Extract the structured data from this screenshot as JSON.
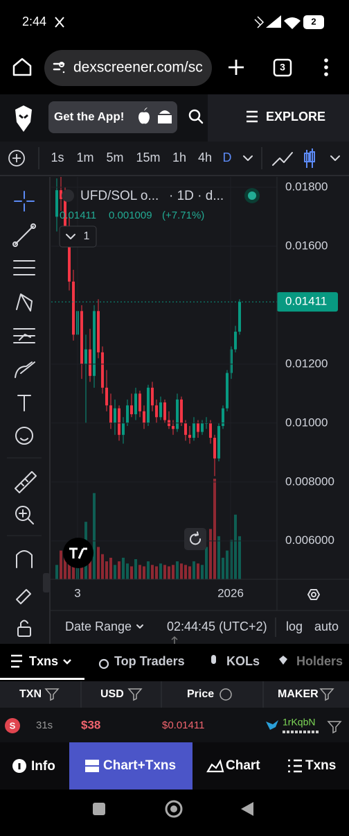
{
  "status_bar": {
    "time": "2:44",
    "battery": "2"
  },
  "browser": {
    "url": "dexscreener.com/sc",
    "tabs": "3"
  },
  "header": {
    "app_button": "Get the App!",
    "explore": "EXPLORE"
  },
  "timeframes": {
    "items": [
      "1s",
      "1m",
      "5m",
      "15m",
      "1h",
      "4h",
      "D"
    ],
    "active": 6
  },
  "chart_data": {
    "type": "candlestick",
    "title": "UFD/SOL o...",
    "interval": "· 1D · d...",
    "legend_values": [
      "0.01411",
      "0.001009",
      "(+7.71%)"
    ],
    "collapse_count": "1",
    "open": [
      0.017,
      0.0179,
      0.0176,
      0.0162,
      0.0148,
      0.013,
      0.0138,
      0.012,
      0.0125,
      0.0116,
      0.0138,
      0.0124,
      0.0112,
      0.0106,
      0.01,
      0.0105,
      0.0096,
      0.01,
      0.0106,
      0.0103,
      0.011,
      0.0104,
      0.01,
      0.0112,
      0.0106,
      0.0102,
      0.0107,
      0.0101,
      0.0099,
      0.0098,
      0.0108,
      0.01,
      0.0096,
      0.0095,
      0.01,
      0.0097,
      0.01,
      0.01,
      0.0095,
      0.0088,
      0.0099,
      0.0105,
      0.0117,
      0.0125,
      0.0131
    ],
    "high": [
      0.0183,
      0.0184,
      0.018,
      0.017,
      0.0152,
      0.0142,
      0.014,
      0.013,
      0.0132,
      0.014,
      0.0142,
      0.0126,
      0.0118,
      0.011,
      0.0108,
      0.0106,
      0.0102,
      0.0108,
      0.011,
      0.0112,
      0.0111,
      0.0106,
      0.0113,
      0.0114,
      0.0108,
      0.0109,
      0.0108,
      0.0104,
      0.0101,
      0.011,
      0.0109,
      0.0101,
      0.0099,
      0.0102,
      0.0101,
      0.0101,
      0.0102,
      0.0101,
      0.0096,
      0.01,
      0.0106,
      0.0118,
      0.0126,
      0.0133,
      0.0142
    ],
    "low": [
      0.0165,
      0.0172,
      0.016,
      0.0145,
      0.0128,
      0.0118,
      0.0115,
      0.01,
      0.0114,
      0.0112,
      0.0122,
      0.011,
      0.0104,
      0.0098,
      0.0096,
      0.0094,
      0.0093,
      0.0099,
      0.0102,
      0.0101,
      0.0102,
      0.0098,
      0.0099,
      0.0104,
      0.01,
      0.0101,
      0.01,
      0.0098,
      0.0096,
      0.0097,
      0.0099,
      0.0094,
      0.0093,
      0.0094,
      0.0095,
      0.0096,
      0.0098,
      0.0093,
      0.0082,
      0.0087,
      0.0098,
      0.0104,
      0.0115,
      0.0124,
      0.013
    ],
    "close": [
      0.0179,
      0.0176,
      0.0162,
      0.0148,
      0.013,
      0.0138,
      0.012,
      0.0125,
      0.0116,
      0.0138,
      0.0124,
      0.0112,
      0.0106,
      0.01,
      0.0105,
      0.0096,
      0.01,
      0.0106,
      0.0103,
      0.011,
      0.0104,
      0.01,
      0.0112,
      0.0106,
      0.0102,
      0.0107,
      0.0101,
      0.0099,
      0.0098,
      0.0108,
      0.01,
      0.0096,
      0.0095,
      0.01,
      0.0097,
      0.01,
      0.01,
      0.0095,
      0.0088,
      0.0099,
      0.0105,
      0.0117,
      0.0125,
      0.0131,
      0.01411
    ],
    "volume": [
      20,
      40,
      30,
      25,
      35,
      30,
      55,
      80,
      40,
      120,
      45,
      35,
      25,
      30,
      20,
      25,
      30,
      22,
      18,
      28,
      20,
      18,
      25,
      20,
      18,
      22,
      20,
      18,
      20,
      25,
      22,
      20,
      18,
      25,
      22,
      20,
      45,
      70,
      140,
      60,
      30,
      40,
      55,
      90,
      60
    ],
    "colors": {
      "up": "#089981",
      "down": "#f23645"
    },
    "ylim": [
      0.0047,
      0.01828
    ],
    "yticks": [
      {
        "value": 0.018,
        "label": "0.01800"
      },
      {
        "value": 0.016,
        "label": "0.01600"
      },
      {
        "value": 0.012,
        "label": "0.01200"
      },
      {
        "value": 0.01,
        "label": "0.01000"
      },
      {
        "value": 0.008,
        "label": "0.008000"
      },
      {
        "value": 0.006,
        "label": "0.006000"
      }
    ],
    "last_price": {
      "value": 0.01411,
      "label": "0.01411"
    },
    "xtick_labels": [
      "3",
      "2026"
    ]
  },
  "chart_footer": {
    "date_range": "Date Range",
    "clock": "02:44:45 (UTC+2)",
    "log": "log",
    "auto": "auto"
  },
  "tabs": [
    "Txns",
    "Top Traders",
    "KOLs",
    "Holders"
  ],
  "table": {
    "columns": [
      "TXN",
      "USD",
      "Price",
      "MAKER"
    ],
    "rows": [
      [
        "S",
        "31s",
        "$38",
        "$0.01411",
        "1rKqbN"
      ]
    ]
  },
  "nav": [
    "Info",
    "Chart+Txns",
    "Chart",
    "Txns"
  ]
}
